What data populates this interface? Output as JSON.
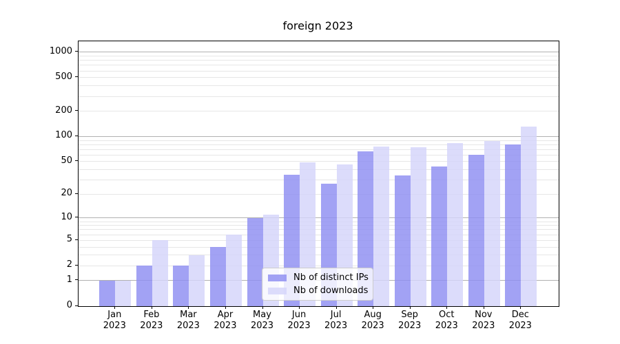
{
  "figure": {
    "title": "foreign 2023"
  },
  "chart_data": {
    "type": "bar",
    "title": "foreign 2023",
    "categories": [
      "Jan 2023",
      "Feb 2023",
      "Mar 2023",
      "Apr 2023",
      "May 2023",
      "Jun 2023",
      "Jul 2023",
      "Aug 2023",
      "Sep 2023",
      "Oct 2023",
      "Nov 2023",
      "Dec 2023"
    ],
    "series": [
      {
        "name": "Nb of distinct IPs",
        "color": "rgba(141,141,242,0.82)",
        "values": [
          1,
          2,
          2,
          4,
          10,
          35,
          27,
          66,
          34,
          44,
          61,
          81
        ]
      },
      {
        "name": "Nb of downloads",
        "color": "rgba(212,212,250,0.82)",
        "values": [
          1,
          5,
          3,
          6,
          11,
          49,
          46,
          76,
          74,
          84,
          88,
          132
        ]
      }
    ],
    "xlabel": "",
    "ylabel": "",
    "y_scale": "log10(value+1)",
    "y_ticks": [
      1000,
      500,
      200,
      100,
      50,
      20,
      10,
      5,
      2,
      1,
      0
    ],
    "ylim": [
      0,
      1348
    ],
    "grid": true,
    "legend_position": "lower center"
  },
  "colors": {
    "axis": "#000000",
    "grid_major": "#b0b0b0",
    "grid_minor": "#e6e6e6",
    "background": "#ffffff",
    "legend_border": "#cccccc"
  }
}
